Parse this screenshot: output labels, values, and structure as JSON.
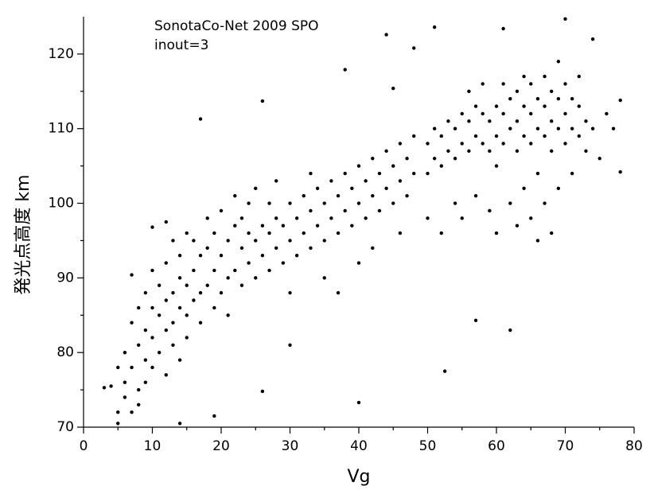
{
  "chart_data": {
    "type": "scatter",
    "annotations": [
      "SonotaCo-Net 2009 SPO",
      "inout=3"
    ],
    "xlabel": "Vg",
    "ylabel": "発光点高度  km",
    "color": "#000000",
    "xlim": [
      0,
      80
    ],
    "ylim": [
      70,
      125
    ],
    "xticks": [
      0,
      10,
      20,
      30,
      40,
      50,
      60,
      70,
      80
    ],
    "yticks": [
      70,
      80,
      90,
      100,
      110,
      120
    ],
    "xticks_minor": [
      5,
      15,
      25,
      35,
      45,
      55,
      65,
      75
    ],
    "yticks_minor": [
      75,
      85,
      95,
      105,
      115
    ],
    "x": [
      3,
      4,
      5,
      5,
      5,
      6,
      6,
      6,
      7,
      7,
      7,
      7,
      8,
      8,
      8,
      8,
      9,
      9,
      9,
      9,
      10,
      10,
      10,
      10,
      10,
      11,
      11,
      11,
      12,
      12,
      12,
      12,
      13,
      13,
      13,
      13,
      14,
      14,
      14,
      14,
      15,
      15,
      15,
      15,
      14,
      12,
      16,
      16,
      16,
      17,
      17,
      17,
      17,
      18,
      18,
      18,
      19,
      19,
      19,
      19,
      20,
      20,
      20,
      21,
      21,
      21,
      22,
      22,
      22,
      23,
      23,
      23,
      24,
      24,
      24,
      25,
      25,
      25,
      26,
      26,
      26,
      26,
      27,
      27,
      27,
      28,
      28,
      28,
      29,
      29,
      30,
      30,
      30,
      30,
      31,
      31,
      32,
      32,
      33,
      33,
      33,
      34,
      34,
      35,
      35,
      35,
      36,
      36,
      37,
      37,
      37,
      38,
      38,
      38,
      39,
      39,
      40,
      40,
      40,
      40,
      41,
      41,
      42,
      42,
      42,
      43,
      43,
      44,
      44,
      44,
      45,
      45,
      45,
      46,
      46,
      46,
      47,
      47,
      48,
      48,
      48,
      50,
      50,
      50,
      51,
      51,
      51,
      52,
      52,
      52,
      52.5,
      53,
      53,
      54,
      54,
      54,
      55,
      55,
      55,
      56,
      56,
      56,
      57,
      57,
      57,
      57,
      58,
      58,
      58,
      59,
      59,
      59,
      60,
      60,
      60,
      60,
      61,
      61,
      61,
      61,
      62,
      62,
      62,
      62,
      63,
      63,
      63,
      63,
      64,
      64,
      64,
      64,
      65,
      65,
      65,
      65,
      66,
      66,
      66,
      66,
      67,
      67,
      67,
      67,
      68,
      68,
      68,
      68,
      69,
      69,
      69,
      69,
      70,
      70,
      70,
      70,
      71,
      71,
      71,
      72,
      72,
      72,
      73,
      73,
      74,
      74,
      75,
      76,
      77,
      78,
      78
    ],
    "values": [
      75.3,
      75.5,
      72,
      78,
      70.5,
      74,
      80,
      76,
      72,
      84,
      78,
      90.4,
      75,
      81,
      86,
      73,
      79,
      83,
      88,
      76,
      82,
      86,
      91,
      78,
      96.8,
      80,
      85,
      89,
      83,
      87,
      92,
      77,
      84,
      88,
      95,
      81,
      86,
      90,
      93,
      79,
      85,
      89,
      96,
      82,
      70.5,
      97.5,
      87,
      91,
      95,
      88,
      93,
      111.3,
      84,
      89,
      94,
      98,
      86,
      91,
      96,
      71.5,
      88,
      93,
      99,
      90,
      95,
      85,
      91,
      97,
      101,
      89,
      94,
      98,
      92,
      96,
      100,
      90,
      95,
      102,
      93,
      97,
      74.8,
      113.7,
      91,
      96,
      100,
      94,
      98,
      103,
      92,
      97,
      95,
      100,
      88,
      81,
      93,
      98,
      96,
      101,
      94,
      99,
      104,
      97,
      102,
      95,
      100,
      90,
      98,
      103,
      96,
      101,
      88,
      99,
      104,
      117.9,
      97,
      102,
      100,
      105,
      92,
      73.3,
      98,
      103,
      101,
      106,
      94,
      99,
      104,
      102,
      107,
      122.6,
      100,
      105,
      115.4,
      103,
      108,
      96,
      101,
      106,
      104,
      109,
      120.8,
      104,
      108,
      98,
      106,
      110,
      123.6,
      105,
      109,
      96,
      77.5,
      107,
      111,
      106,
      110,
      100,
      108,
      112,
      98,
      107,
      111,
      115,
      109,
      113,
      101,
      84.3,
      108,
      112,
      116,
      107,
      111,
      99,
      109,
      113,
      105,
      96,
      108,
      112,
      116,
      123.4,
      110,
      114,
      100,
      83,
      107,
      111,
      115,
      97,
      109,
      113,
      117,
      102,
      108,
      112,
      116,
      98,
      110,
      114,
      104,
      95,
      109,
      113,
      117,
      100,
      111,
      115,
      107,
      96,
      110,
      114,
      119,
      102,
      108,
      112,
      116,
      124.7,
      110,
      114,
      104,
      109,
      113,
      117,
      111,
      107,
      110,
      122,
      106,
      112,
      110,
      104.2,
      113.8
    ]
  }
}
